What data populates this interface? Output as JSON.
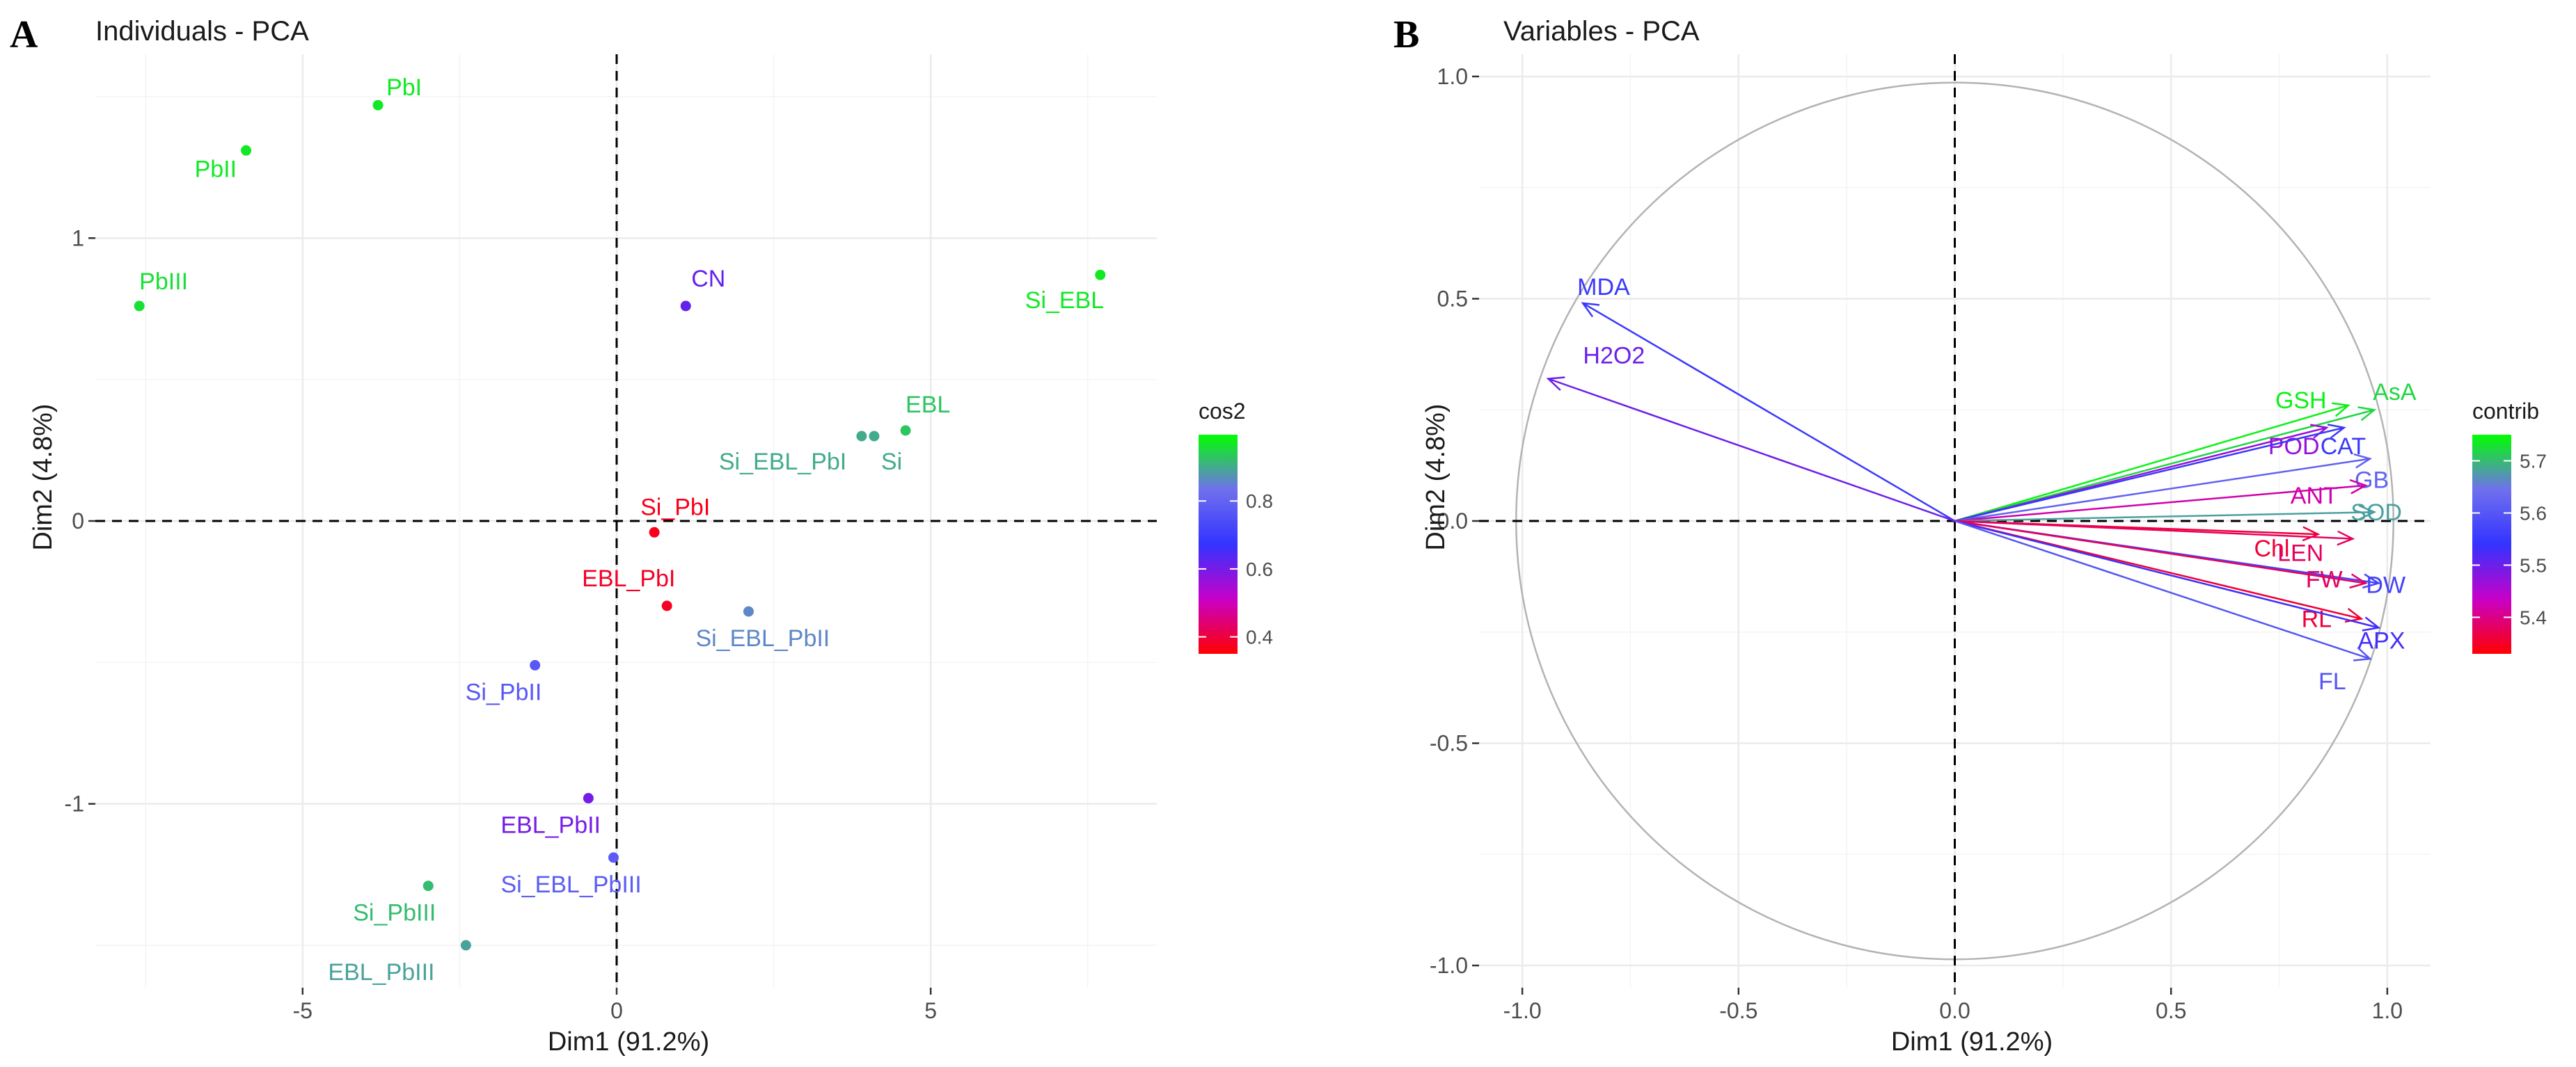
{
  "panels": {
    "A": {
      "letter": "A"
    },
    "B": {
      "letter": "B"
    }
  },
  "chart_data": [
    {
      "type": "scatter",
      "title": "Individuals - PCA",
      "xlabel": "Dim1 (91.2%)",
      "ylabel": "Dim2 (4.8%)",
      "xlim": [
        -8.3,
        8.6
      ],
      "ylim": [
        -1.65,
        1.65
      ],
      "xticks": [
        -5,
        0,
        5
      ],
      "xtick_labels": [
        "-5",
        "0",
        "5"
      ],
      "yticks": [
        -1,
        0,
        1
      ],
      "ytick_labels": [
        "-1",
        "0",
        "1"
      ],
      "grid": true,
      "legend": {
        "title": "cos2",
        "ticks": [
          0.4,
          0.6,
          0.8
        ],
        "tick_labels": [
          "0.4",
          "0.6",
          "0.8"
        ],
        "range": [
          0.35,
          0.995
        ],
        "placement": "right"
      },
      "points": [
        {
          "label": "PbI",
          "x": -3.8,
          "y": 1.47,
          "cos2": 0.97
        },
        {
          "label": "PbII",
          "x": -5.9,
          "y": 1.31,
          "cos2": 0.97
        },
        {
          "label": "PbIII",
          "x": -7.6,
          "y": 0.76,
          "cos2": 0.96
        },
        {
          "label": "CN",
          "x": 1.1,
          "y": 0.76,
          "cos2": 0.62
        },
        {
          "label": "Si_EBL",
          "x": 7.7,
          "y": 0.87,
          "cos2": 0.97
        },
        {
          "label": "EBL",
          "x": 4.6,
          "y": 0.32,
          "cos2": 0.93
        },
        {
          "label": "Si_EBL_PbI",
          "x": 3.9,
          "y": 0.3,
          "cos2": 0.9
        },
        {
          "label": "Si",
          "x": 4.1,
          "y": 0.3,
          "cos2": 0.9
        },
        {
          "label": "Si_PbI",
          "x": 0.6,
          "y": -0.04,
          "cos2": 0.37
        },
        {
          "label": "EBL_PbI",
          "x": 0.8,
          "y": -0.3,
          "cos2": 0.38
        },
        {
          "label": "Si_EBL_PbII",
          "x": 2.1,
          "y": -0.32,
          "cos2": 0.86
        },
        {
          "label": "Si_PbII",
          "x": -1.3,
          "y": -0.51,
          "cos2": 0.77
        },
        {
          "label": "EBL_PbII",
          "x": -0.45,
          "y": -0.98,
          "cos2": 0.6
        },
        {
          "label": "Si_EBL_PbIII",
          "x": -0.05,
          "y": -1.19,
          "cos2": 0.78
        },
        {
          "label": "Si_PbIII",
          "x": -3.0,
          "y": -1.29,
          "cos2": 0.92
        },
        {
          "label": "EBL_PbIII",
          "x": -2.4,
          "y": -1.5,
          "cos2": 0.89
        }
      ]
    },
    {
      "type": "scatter",
      "subtype": "variables-correlation-circle",
      "title": "Variables - PCA",
      "xlabel": "Dim1 (91.2%)",
      "ylabel": "Dim2 (4.8%)",
      "xlim": [
        -1.1,
        1.1
      ],
      "ylim": [
        -1.05,
        1.05
      ],
      "xticks": [
        -1.0,
        -0.5,
        0.0,
        0.5,
        1.0
      ],
      "xtick_labels": [
        "-1.0",
        "-0.5",
        "0.0",
        "0.5",
        "1.0"
      ],
      "yticks": [
        -1.0,
        -0.5,
        0.0,
        0.5,
        1.0
      ],
      "ytick_labels": [
        "-1.0",
        "-0.5",
        "0.0",
        "0.5",
        "1.0"
      ],
      "grid": true,
      "legend": {
        "title": "contrib",
        "ticks": [
          5.4,
          5.5,
          5.6,
          5.7
        ],
        "tick_labels": [
          "5.4",
          "5.5",
          "5.6",
          "5.7"
        ],
        "range": [
          5.33,
          5.75
        ],
        "placement": "right"
      },
      "variables": [
        {
          "label": "MDA",
          "x": -0.86,
          "y": 0.49,
          "contrib": 5.55
        },
        {
          "label": "H2O2",
          "x": -0.94,
          "y": 0.32,
          "contrib": 5.5
        },
        {
          "label": "GSH",
          "x": 0.91,
          "y": 0.26,
          "contrib": 5.74
        },
        {
          "label": "AsA",
          "x": 0.97,
          "y": 0.25,
          "contrib": 5.72
        },
        {
          "label": "POD",
          "x": 0.86,
          "y": 0.21,
          "contrib": 5.47
        },
        {
          "label": "CAT",
          "x": 0.9,
          "y": 0.21,
          "contrib": 5.55
        },
        {
          "label": "GB",
          "x": 0.96,
          "y": 0.14,
          "contrib": 5.62
        },
        {
          "label": "ANT",
          "x": 0.95,
          "y": 0.08,
          "contrib": 5.42
        },
        {
          "label": "SOD",
          "x": 0.97,
          "y": 0.02,
          "contrib": 5.68
        },
        {
          "label": "Chl",
          "x": 0.84,
          "y": -0.03,
          "contrib": 5.36
        },
        {
          "label": "LEN",
          "x": 0.92,
          "y": -0.04,
          "contrib": 5.38
        },
        {
          "label": "DW",
          "x": 0.98,
          "y": -0.14,
          "contrib": 5.57
        },
        {
          "label": "FW",
          "x": 0.95,
          "y": -0.14,
          "contrib": 5.38
        },
        {
          "label": "RL",
          "x": 0.94,
          "y": -0.22,
          "contrib": 5.36
        },
        {
          "label": "APX",
          "x": 0.98,
          "y": -0.24,
          "contrib": 5.53
        },
        {
          "label": "FL",
          "x": 0.96,
          "y": -0.31,
          "contrib": 5.6
        }
      ]
    }
  ]
}
